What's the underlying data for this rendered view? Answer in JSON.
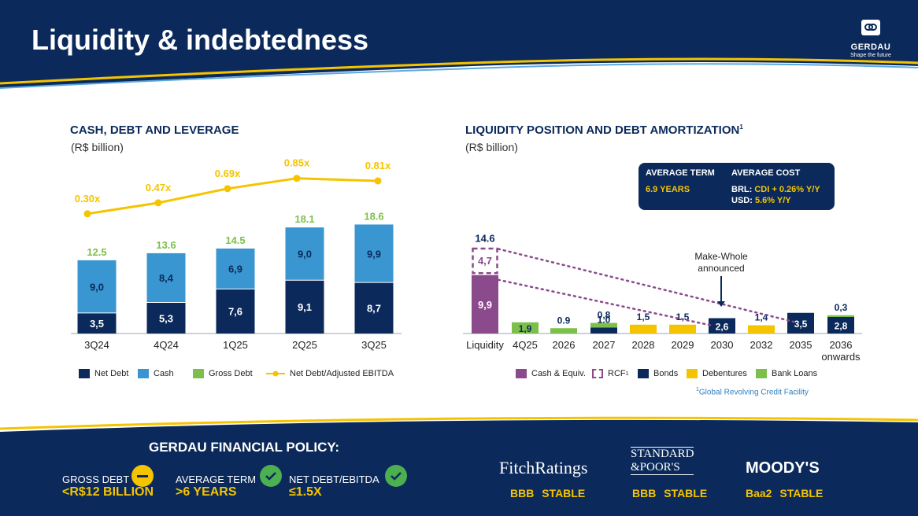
{
  "header": {
    "title": "Liquidity & indebtedness",
    "logo_name": "GERDAU",
    "logo_tagline": "Shape the future"
  },
  "colors": {
    "navy": "#0b2a5b",
    "light_blue": "#3a96d0",
    "green": "#7cc04b",
    "gold": "#f5c400",
    "purple": "#8b4a8c"
  },
  "left_chart": {
    "title": "CASH, DEBT AND LEVERAGE",
    "unit": "(R$ billion)",
    "legend": [
      "Net Debt",
      "Cash",
      "Gross Debt",
      "Net Debt/Adjusted EBITDA"
    ],
    "chart_data": {
      "type": "bar",
      "stacked": true,
      "categories": [
        "3Q24",
        "4Q24",
        "1Q25",
        "2Q25",
        "3Q25"
      ],
      "series": [
        {
          "name": "Net Debt",
          "values": [
            3.5,
            5.3,
            7.6,
            9.1,
            8.7
          ],
          "labels": [
            "3,5",
            "5,3",
            "7,6",
            "9,1",
            "8,7"
          ]
        },
        {
          "name": "Cash",
          "values": [
            9.0,
            8.4,
            6.9,
            9.0,
            9.9
          ],
          "labels": [
            "9,0",
            "8,4",
            "6,9",
            "9,0",
            "9,9"
          ]
        }
      ],
      "gross_debt": {
        "name": "Gross Debt",
        "values": [
          12.5,
          13.6,
          14.5,
          18.1,
          18.6
        ],
        "labels": [
          "12.5",
          "13.6",
          "14.5",
          "18.1",
          "18.6"
        ]
      },
      "leverage": {
        "name": "Net Debt/Adjusted EBITDA",
        "type": "line",
        "values": [
          0.3,
          0.47,
          0.69,
          0.85,
          0.81
        ],
        "labels": [
          "0.30x",
          "0.47x",
          "0.69x",
          "0.85x",
          "0.81x"
        ]
      }
    }
  },
  "right_chart": {
    "title": "LIQUIDITY POSITION AND DEBT AMORTIZATION",
    "title_sup": "1",
    "unit": "(R$ billion)",
    "info_box": {
      "term_heading": "AVERAGE TERM",
      "term_value": "6.9 YEARS",
      "cost_heading": "AVERAGE COST",
      "brl_label": "BRL:",
      "brl_value": "CDI + 0.26% Y/Y",
      "usd_label": "USD:",
      "usd_value": "5.6% Y/Y"
    },
    "annotation": "Make-Whole announced",
    "legend": [
      "Cash & Equiv.",
      "RCF",
      "Bonds",
      "Debentures",
      "Bank Loans"
    ],
    "legend_sup": "1",
    "footnote_sup": "1",
    "footnote": "Global Revolving Credit Facility",
    "chart_data": {
      "type": "bar",
      "stacked": true,
      "categories": [
        "Liquidity",
        "4Q25",
        "2026",
        "2027",
        "2028",
        "2029",
        "2030",
        "2032",
        "2035",
        "2036 onwards"
      ],
      "liquidity": {
        "cash_equiv": 9.9,
        "cash_label": "9,9",
        "rcf": 4.7,
        "rcf_label": "4,7",
        "total": 14.6,
        "total_label": "14.6"
      },
      "amortization": [
        {
          "period": "4Q25",
          "segments": [
            {
              "type": "Bank Loans",
              "value": 1.9,
              "label": "1,9"
            }
          ]
        },
        {
          "period": "2026",
          "segments": [
            {
              "type": "Bank Loans",
              "value": 0.9,
              "label": "0.9"
            }
          ]
        },
        {
          "period": "2027",
          "segments": [
            {
              "type": "Bonds",
              "value": 1.0,
              "label": "1,0"
            },
            {
              "type": "Bank Loans",
              "value": 0.8,
              "label": "0,8"
            }
          ]
        },
        {
          "period": "2028",
          "segments": [
            {
              "type": "Debentures",
              "value": 1.5,
              "label": "1,5"
            }
          ]
        },
        {
          "period": "2029",
          "segments": [
            {
              "type": "Debentures",
              "value": 1.5,
              "label": "1,5"
            }
          ]
        },
        {
          "period": "2030",
          "segments": [
            {
              "type": "Bonds",
              "value": 2.6,
              "label": "2,6"
            }
          ]
        },
        {
          "period": "2032",
          "segments": [
            {
              "type": "Debentures",
              "value": 1.4,
              "label": "1,4"
            }
          ]
        },
        {
          "period": "2035",
          "segments": [
            {
              "type": "Bonds",
              "value": 3.5,
              "label": "3,5"
            }
          ]
        },
        {
          "period": "2036 onwards",
          "segments": [
            {
              "type": "Bonds",
              "value": 2.8,
              "label": "2,8"
            },
            {
              "type": "Bank Loans",
              "value": 0.3,
              "label": "0,3"
            }
          ]
        }
      ]
    }
  },
  "footer": {
    "policy_title": "GERDAU FINANCIAL POLICY:",
    "policies": [
      {
        "label": "GROSS DEBT",
        "value": "<R$12 BILLION",
        "status": "neutral"
      },
      {
        "label": "AVERAGE TERM",
        "value": ">6 YEARS",
        "status": "met"
      },
      {
        "label": "NET DEBT/EBITDA",
        "value": "≤1.5X",
        "status": "met"
      }
    ],
    "ratings": [
      {
        "agency": "FitchRatings",
        "rating": "BBB STABLE"
      },
      {
        "agency_line1": "STANDARD",
        "agency_line2": "&POOR'S",
        "rating": "BBB STABLE"
      },
      {
        "agency": "MOODY'S",
        "rating": "Baa2 STABLE"
      }
    ]
  }
}
